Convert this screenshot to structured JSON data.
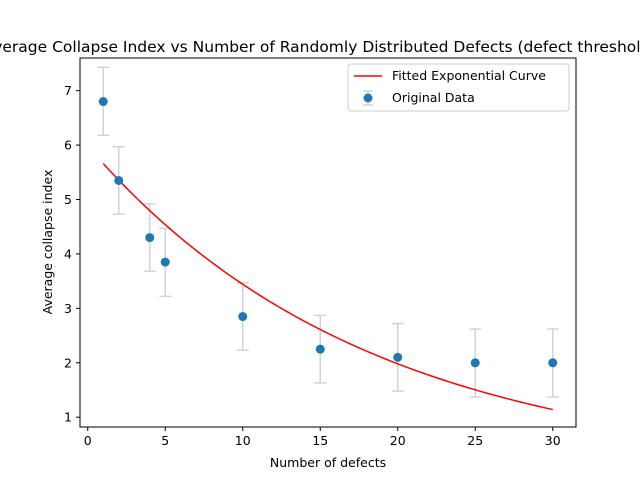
{
  "chart_data": {
    "type": "scatter",
    "title": "Average Collapse Index vs Number of Randomly Distributed Defects (defect threshold)",
    "xlabel": "Number of defects",
    "ylabel": "Average collapse index",
    "xlim": [
      -0.5,
      31.5
    ],
    "ylim": [
      0.82,
      7.6
    ],
    "xticks": [
      0,
      5,
      10,
      15,
      20,
      25,
      30
    ],
    "yticks": [
      1,
      2,
      3,
      4,
      5,
      6,
      7
    ],
    "grid": false,
    "legend_position": "top-right",
    "series": [
      {
        "name": "Original Data",
        "kind": "points_with_error_bars",
        "color": "#1f77b4",
        "errorbar_color": "#d3d3d3",
        "x": [
          1,
          2,
          4,
          5,
          10,
          15,
          20,
          25,
          30
        ],
        "y": [
          6.8,
          5.35,
          4.3,
          3.85,
          2.85,
          2.25,
          2.1,
          2.0,
          2.0
        ],
        "y_lower": [
          6.18,
          4.73,
          3.68,
          3.22,
          2.23,
          1.63,
          1.48,
          1.37,
          1.37
        ],
        "y_upper": [
          7.43,
          5.97,
          4.92,
          4.47,
          3.47,
          2.87,
          2.72,
          2.62,
          2.62
        ]
      },
      {
        "name": "Fitted Exponential Curve",
        "kind": "line",
        "color": "#ff0000",
        "x": [
          1,
          2,
          4,
          5,
          10,
          15,
          20,
          25,
          30
        ],
        "y": [
          5.66,
          5.34,
          4.75,
          4.48,
          3.42,
          2.6,
          1.98,
          1.51,
          1.14
        ]
      }
    ]
  }
}
